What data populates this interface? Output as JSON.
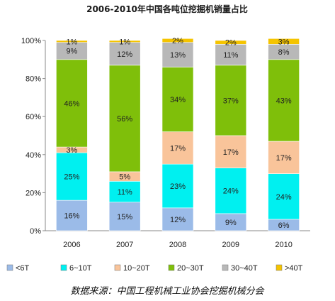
{
  "chart_data": {
    "type": "bar",
    "stacked": true,
    "title": "2006-2010年中国各吨位挖掘机销量占比",
    "categories": [
      "2006",
      "2007",
      "2008",
      "2009",
      "2010"
    ],
    "series": [
      {
        "name": "<6T",
        "color": "#9bbbe8",
        "values": [
          16,
          15,
          12,
          9,
          6
        ],
        "labels": [
          "16%",
          "15%",
          "12%",
          "9%",
          "6%"
        ]
      },
      {
        "name": "6~10T",
        "color": "#00f0f0",
        "values": [
          25,
          11,
          23,
          24,
          24
        ],
        "labels": [
          "25%",
          "11%",
          "23%",
          "24%",
          "24%"
        ]
      },
      {
        "name": "10~20T",
        "color": "#f9c49a",
        "values": [
          3,
          5,
          17,
          17,
          17
        ],
        "labels": [
          "3%",
          "5%",
          "17%",
          "17%",
          "17%"
        ]
      },
      {
        "name": "20~30T",
        "color": "#7fbf0a",
        "values": [
          46,
          56,
          34,
          37,
          43
        ],
        "labels": [
          "46%",
          "56%",
          "34%",
          "37%",
          "43%"
        ]
      },
      {
        "name": "30~40T",
        "color": "#b8b8b8",
        "values": [
          9,
          12,
          13,
          11,
          8
        ],
        "labels": [
          "9%",
          "12%",
          "13%",
          "11%",
          "8%"
        ]
      },
      {
        "name": ">40T",
        "color": "#f5c400",
        "values": [
          1,
          1,
          2,
          2,
          3
        ],
        "labels": [
          "1%",
          "1%",
          "2%",
          "2%",
          "3%"
        ]
      }
    ],
    "yticks": [
      "0%",
      "20%",
      "40%",
      "60%",
      "80%",
      "100%"
    ],
    "ylim": [
      0,
      100
    ],
    "grid": false,
    "legend_position": "bottom",
    "source_note": "数据来源：中国工程机械工业协会挖掘机械分会"
  }
}
